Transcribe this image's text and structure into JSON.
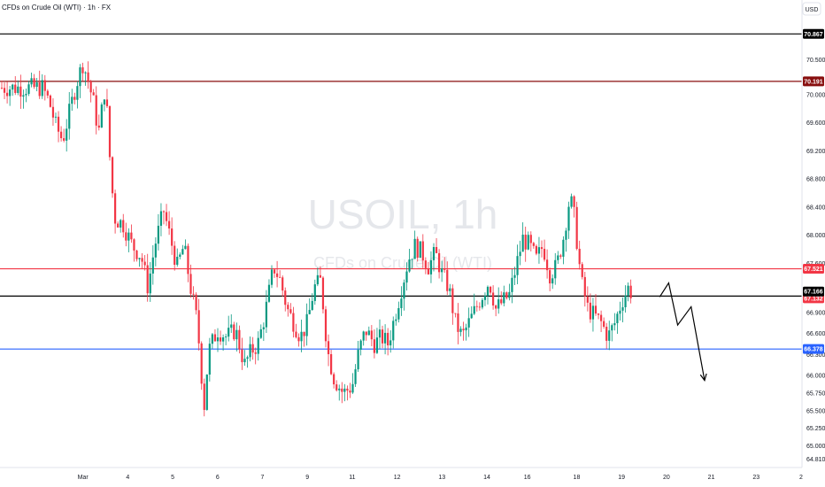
{
  "header": {
    "symbol_title": "CFDs on Crude Oil (WTI) · 1h · FX",
    "currency": "USD"
  },
  "watermark": {
    "main": "USOIL, 1h",
    "sub": "CFDs on Crude Oil (WTI)"
  },
  "chart_data": {
    "type": "candlestick",
    "title": "CFDs on Crude Oil (WTI) · 1h · FX",
    "y_unit": "USD",
    "ylim": [
      64.69,
      71.35
    ],
    "y_ticks": [
      "70.500",
      "70.000",
      "69.600",
      "69.200",
      "68.800",
      "68.400",
      "68.000",
      "67.600",
      "66.900",
      "66.600",
      "66.300",
      "66.000",
      "65.750",
      "65.500",
      "65.250",
      "65.000",
      "64.810"
    ],
    "x_ticks": [
      {
        "label": "Mar",
        "x": 3.0
      },
      {
        "label": "4",
        "x": 4.0
      },
      {
        "label": "5",
        "x": 5.0
      },
      {
        "label": "6",
        "x": 6.0
      },
      {
        "label": "7",
        "x": 7.0
      },
      {
        "label": "9",
        "x": 8.0
      },
      {
        "label": "11",
        "x": 9.0
      },
      {
        "label": "12",
        "x": 10.0
      },
      {
        "label": "13",
        "x": 11.0
      },
      {
        "label": "14",
        "x": 12.0
      },
      {
        "label": "16",
        "x": 12.9
      },
      {
        "label": "18",
        "x": 14.0
      },
      {
        "label": "19",
        "x": 15.0
      },
      {
        "label": "20",
        "x": 16.0
      },
      {
        "label": "21",
        "x": 17.0
      },
      {
        "label": "23",
        "x": 18.0
      },
      {
        "label": "2",
        "x": 19.0
      }
    ],
    "xlim": [
      2.1,
      19.0
    ],
    "horizontal_levels": [
      {
        "value": 70.867,
        "label": "70.867",
        "color": "#000000"
      },
      {
        "value": 70.191,
        "label": "70.191",
        "color": "#880e0e"
      },
      {
        "value": 67.521,
        "label": "67.521",
        "color": "#f23645"
      },
      {
        "value": 67.132,
        "label": "67.132",
        "color": "#000000",
        "tag_color": "#f23645"
      },
      {
        "value": 66.378,
        "label": "66.378",
        "color": "#2962ff"
      }
    ],
    "current_price": {
      "value": 67.166,
      "label": "67.166",
      "color": "#000000"
    },
    "projection_path": [
      {
        "x": 15.85,
        "y": 67.12
      },
      {
        "x": 16.05,
        "y": 67.32
      },
      {
        "x": 16.25,
        "y": 66.72
      },
      {
        "x": 16.55,
        "y": 66.98
      },
      {
        "x": 16.85,
        "y": 65.93
      }
    ],
    "ohlc_path": [
      [
        2.1,
        70.1
      ],
      [
        2.25,
        69.9
      ],
      [
        2.4,
        69.55
      ],
      [
        2.55,
        69.35
      ],
      [
        2.7,
        69.75
      ],
      [
        2.85,
        70.15
      ],
      [
        3.0,
        70.45
      ],
      [
        3.1,
        70.25
      ],
      [
        3.25,
        69.85
      ],
      [
        3.35,
        69.45
      ],
      [
        3.5,
        70.15
      ],
      [
        3.6,
        69.1
      ],
      [
        3.7,
        68.25
      ],
      [
        3.9,
        68.15
      ],
      [
        4.1,
        67.85
      ],
      [
        4.3,
        67.7
      ],
      [
        4.45,
        67.25
      ],
      [
        4.6,
        67.85
      ],
      [
        4.8,
        68.35
      ],
      [
        4.95,
        67.95
      ],
      [
        5.1,
        67.55
      ],
      [
        5.25,
        67.85
      ],
      [
        5.4,
        67.25
      ],
      [
        5.55,
        66.75
      ],
      [
        5.7,
        65.55
      ],
      [
        5.8,
        66.35
      ],
      [
        6.0,
        66.65
      ],
      [
        6.2,
        66.55
      ],
      [
        6.4,
        66.65
      ],
      [
        6.6,
        66.15
      ],
      [
        6.75,
        66.35
      ],
      [
        6.9,
        66.45
      ],
      [
        7.05,
        66.85
      ],
      [
        7.25,
        67.55
      ],
      [
        7.4,
        67.35
      ],
      [
        7.55,
        66.95
      ],
      [
        7.7,
        66.75
      ],
      [
        7.85,
        66.55
      ],
      [
        8.0,
        66.75
      ],
      [
        8.15,
        67.25
      ],
      [
        8.3,
        67.35
      ],
      [
        8.45,
        66.35
      ],
      [
        8.6,
        65.95
      ],
      [
        8.8,
        65.75
      ],
      [
        9.0,
        65.85
      ],
      [
        9.15,
        66.35
      ],
      [
        9.3,
        66.65
      ],
      [
        9.5,
        66.45
      ],
      [
        9.65,
        66.55
      ],
      [
        9.8,
        66.45
      ],
      [
        9.95,
        66.85
      ],
      [
        10.1,
        67.25
      ],
      [
        10.25,
        67.65
      ],
      [
        10.4,
        67.85
      ],
      [
        10.55,
        67.75
      ],
      [
        10.7,
        67.55
      ],
      [
        10.85,
        67.75
      ],
      [
        11.0,
        67.45
      ],
      [
        11.15,
        67.25
      ],
      [
        11.3,
        66.75
      ],
      [
        11.45,
        66.55
      ],
      [
        11.6,
        66.75
      ],
      [
        11.75,
        66.95
      ],
      [
        11.9,
        67.15
      ],
      [
        12.05,
        67.35
      ],
      [
        12.2,
        66.95
      ],
      [
        12.35,
        67.05
      ],
      [
        12.5,
        67.15
      ],
      [
        12.65,
        67.55
      ],
      [
        12.8,
        67.95
      ],
      [
        12.95,
        67.85
      ],
      [
        13.1,
        67.65
      ],
      [
        13.25,
        67.85
      ],
      [
        13.4,
        67.45
      ],
      [
        13.55,
        67.55
      ],
      [
        13.7,
        67.95
      ],
      [
        13.85,
        68.55
      ],
      [
        13.95,
        68.25
      ],
      [
        14.1,
        67.35
      ],
      [
        14.25,
        66.95
      ],
      [
        14.4,
        66.85
      ],
      [
        14.55,
        66.75
      ],
      [
        14.7,
        66.55
      ],
      [
        14.85,
        66.75
      ],
      [
        15.0,
        67.05
      ],
      [
        15.15,
        67.25
      ],
      [
        15.25,
        67.15
      ]
    ]
  }
}
